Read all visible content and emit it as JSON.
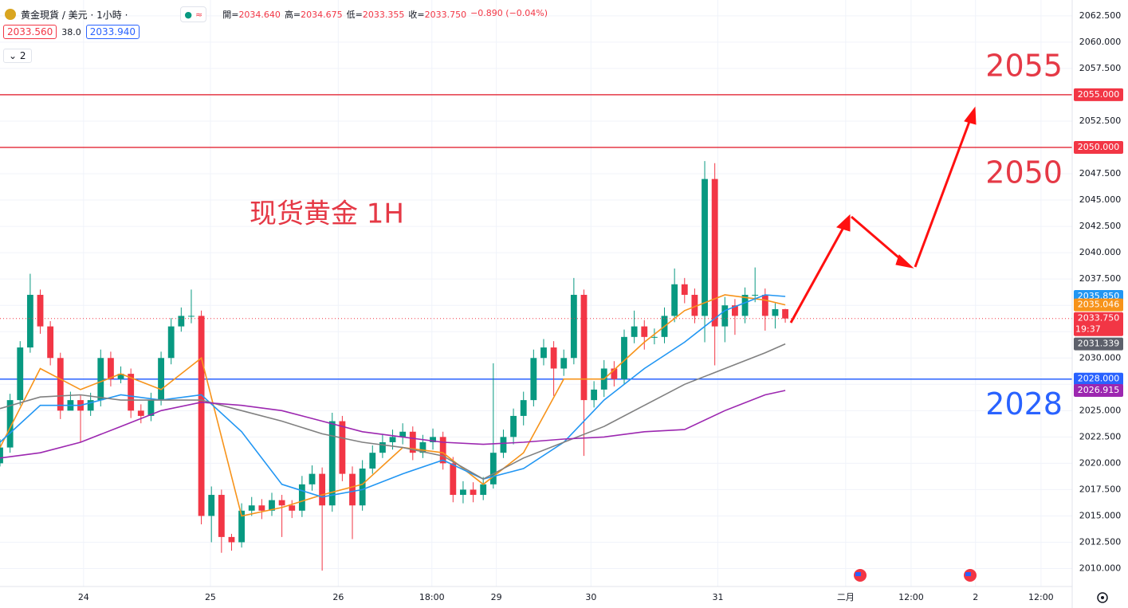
{
  "chart_data": {
    "type": "candlestick",
    "title": "黄金現貨 / 美元 · 1小時 ·",
    "ohlc": [
      {
        "name": "開=",
        "value": "2034.640"
      },
      {
        "name": "高=",
        "value": "2034.675"
      },
      {
        "name": "低=",
        "value": "2033.355"
      },
      {
        "name": "收=",
        "value": "2033.750"
      }
    ],
    "change": "−0.890 (−0.04%)",
    "sell_price": "2033.560",
    "spread": "38.0",
    "buy_price": "2033.940",
    "indicator_count": "2",
    "annotation": "现货黄金 1H",
    "up_color": "#089981",
    "down_color": "#f23645",
    "grid": true,
    "xlim": [
      0,
      106.5
    ],
    "ylim": [
      2008.3,
      2064.0
    ],
    "xticks": [
      {
        "value": 8.3,
        "label": "24"
      },
      {
        "value": 20.9,
        "label": "25"
      },
      {
        "value": 33.6,
        "label": "26"
      },
      {
        "value": 42.9,
        "label": "18:00"
      },
      {
        "value": 49.3,
        "label": "29"
      },
      {
        "value": 58.7,
        "label": "30"
      },
      {
        "value": 71.3,
        "label": "31"
      },
      {
        "value": 84,
        "label": "二月"
      },
      {
        "value": 90.5,
        "label": "12:00"
      },
      {
        "value": 96.9,
        "label": "2"
      },
      {
        "value": 103.4,
        "label": "12:00"
      }
    ],
    "yticks": [
      {
        "value": 2010,
        "label": "2010.000"
      },
      {
        "value": 2012.5,
        "label": "2012.500"
      },
      {
        "value": 2015,
        "label": "2015.000"
      },
      {
        "value": 2017.5,
        "label": "2017.500"
      },
      {
        "value": 2020,
        "label": "2020.000"
      },
      {
        "value": 2022.5,
        "label": "2022.500"
      },
      {
        "value": 2025,
        "label": "2025.000"
      },
      {
        "value": 2027.5,
        "label": "2027.500"
      },
      {
        "value": 2030,
        "label": "2030.000"
      },
      {
        "value": 2032.5,
        "label": "2032.500"
      },
      {
        "value": 2035,
        "label": "2035.000"
      },
      {
        "value": 2037.5,
        "label": "2037.500"
      },
      {
        "value": 2040,
        "label": "2040.000"
      },
      {
        "value": 2042.5,
        "label": "2042.500"
      },
      {
        "value": 2045,
        "label": "2045.000"
      },
      {
        "value": 2047.5,
        "label": "2047.500"
      },
      {
        "value": 2050,
        "label": "2050.000"
      },
      {
        "value": 2052.5,
        "label": "2052.500"
      },
      {
        "value": 2055,
        "label": "2055.000"
      },
      {
        "value": 2057.5,
        "label": "2057.500"
      },
      {
        "value": 2060,
        "label": "2060.000"
      },
      {
        "value": 2062.5,
        "label": "2062.500"
      }
    ],
    "open": [
      2020,
      2021.5,
      2026,
      2031,
      2036,
      2033,
      2030,
      2025,
      2026,
      2025,
      2026,
      2030,
      2028,
      2028.5,
      2025,
      2024.5,
      2026,
      2030,
      2033,
      2034,
      2034,
      2015,
      2017,
      2013,
      2012.5,
      2015.5,
      2016,
      2015.5,
      2016.5,
      2016,
      2015.5,
      2018,
      2019,
      2016,
      2024,
      2019,
      2016,
      2019.5,
      2021,
      2022,
      2022.5,
      2023,
      2021,
      2022,
      2022.5,
      2020,
      2017,
      2017.5,
      2017,
      2018,
      2021,
      2022.5,
      2024.5,
      2026,
      2030,
      2031,
      2029,
      2030,
      2036,
      2026,
      2027,
      2029,
      2028,
      2032,
      2033,
      2032,
      2032,
      2034,
      2037,
      2036,
      2034,
      2047,
      2033,
      2035,
      2034,
      2036,
      2036,
      2034,
      2034.64
    ],
    "high": [
      2022.3,
      2026.6,
      2031.6,
      2038,
      2036.5,
      2033.5,
      2030.5,
      2026.8,
      2026.5,
      2026.7,
      2030.8,
      2030.6,
      2029.2,
      2029,
      2025.6,
      2026.7,
      2030.6,
      2033.8,
      2034.8,
      2036.5,
      2034.5,
      2017.8,
      2017.5,
      2013.3,
      2016.2,
      2016.8,
      2016.6,
      2017.2,
      2017,
      2016.5,
      2018.8,
      2019.8,
      2019.6,
      2024.8,
      2024.5,
      2019.7,
      2020.3,
      2021.7,
      2022.8,
      2023.2,
      2023.8,
      2023.5,
      2022.7,
      2023.3,
      2023,
      2020.6,
      2018.3,
      2018.2,
      2018.7,
      2029.5,
      2023.2,
      2025.2,
      2026.8,
      2030.8,
      2031.8,
      2031.6,
      2030.8,
      2037.6,
      2036.5,
      2027.8,
      2029.8,
      2029.7,
      2032.7,
      2034.5,
      2033.6,
      2032.8,
      2034.8,
      2038.5,
      2037.6,
      2036.6,
      2048.7,
      2048.5,
      2035.8,
      2035.6,
      2036.7,
      2038.6,
      2036.6,
      2035.2,
      2034.675
    ],
    "low": [
      2019.7,
      2021,
      2025.5,
      2030.5,
      2032.3,
      2029.3,
      2024.2,
      2025.2,
      2022,
      2024.5,
      2025.4,
      2027.3,
      2027.6,
      2024.3,
      2023.8,
      2024,
      2025.5,
      2029.4,
      2032.5,
      2033.3,
      2014.2,
      2012.5,
      2011.5,
      2011.7,
      2012,
      2015,
      2014.7,
      2015,
      2013,
      2014.8,
      2014.9,
      2017.4,
      2009.8,
      2015.4,
      2018.3,
      2012.8,
      2015.5,
      2019,
      2020.5,
      2021.3,
      2021.8,
      2020.3,
      2020.5,
      2021.3,
      2019.4,
      2016.3,
      2016.2,
      2016.3,
      2016.5,
      2017.6,
      2020.5,
      2021.8,
      2023.6,
      2025.4,
      2029.3,
      2026.4,
      2028.3,
      2029.4,
      2020.7,
      2025.3,
      2026.3,
      2027.3,
      2027.5,
      2031.4,
      2030.8,
      2031.3,
      2031.4,
      2033.4,
      2035.2,
      2033.3,
      2031.5,
      2029.3,
      2031.5,
      2032.2,
      2033.3,
      2035.3,
      2032.6,
      2032.8,
      2033.355
    ],
    "close": [
      2021.5,
      2026,
      2031,
      2036,
      2033,
      2030,
      2025,
      2026,
      2025,
      2026,
      2030,
      2028,
      2028.5,
      2025,
      2024.5,
      2026,
      2030,
      2033,
      2034,
      2034,
      2015,
      2017,
      2013,
      2012.5,
      2015.5,
      2016,
      2015.5,
      2016.5,
      2016,
      2015.5,
      2018,
      2019,
      2016,
      2024,
      2019,
      2016,
      2019.5,
      2021,
      2022,
      2022.5,
      2023,
      2021,
      2022,
      2022.5,
      2020,
      2017,
      2017.5,
      2017,
      2018,
      2021,
      2022.5,
      2024.5,
      2026,
      2030,
      2031,
      2029,
      2030,
      2036,
      2026,
      2027,
      2029,
      2028,
      2032,
      2033,
      2032,
      2032,
      2034,
      2037,
      2036,
      2034,
      2047,
      2033,
      2035,
      2034,
      2036,
      2036,
      2034,
      2034.64,
      2033.75
    ],
    "series": [
      {
        "color": "#f7931a",
        "x": [
          0,
          4,
          8,
          12,
          16,
          20,
          24,
          28,
          32,
          36,
          40,
          44,
          48,
          52,
          56,
          60,
          64,
          68,
          72,
          76,
          78
        ],
        "values": [
          2021.5,
          2029,
          2027,
          2028.5,
          2027,
          2030,
          2015,
          2015.8,
          2017,
          2018,
          2021.5,
          2021,
          2018,
          2021,
          2028,
          2028,
          2031.5,
          2034.5,
          2036,
          2035.5,
          2035.046
        ]
      },
      {
        "color": "#2196f3",
        "x": [
          0,
          4,
          8,
          12,
          16,
          20,
          24,
          28,
          32,
          36,
          40,
          44,
          48,
          52,
          56,
          60,
          64,
          68,
          72,
          76,
          78
        ],
        "values": [
          2022,
          2025.5,
          2025.5,
          2026.5,
          2026,
          2026.5,
          2023,
          2018,
          2016.8,
          2017.5,
          2019,
          2020.3,
          2018.5,
          2019.5,
          2022,
          2026,
          2029,
          2031.5,
          2034.5,
          2036,
          2035.85
        ]
      },
      {
        "color": "#808080",
        "x": [
          0,
          4,
          8,
          12,
          16,
          20,
          24,
          28,
          32,
          36,
          40,
          44,
          48,
          52,
          56,
          60,
          64,
          68,
          72,
          76,
          78
        ],
        "values": [
          2025.2,
          2026.3,
          2026.5,
          2026,
          2026,
          2026,
          2025,
          2024,
          2022.8,
          2022,
          2021.5,
          2020.7,
          2018.5,
          2020.5,
          2022,
          2023.5,
          2025.5,
          2027.5,
          2029,
          2030.5,
          2031.339
        ]
      },
      {
        "color": "#9c27b0",
        "x": [
          0,
          4,
          8,
          12,
          16,
          20,
          24,
          28,
          32,
          36,
          40,
          44,
          48,
          52,
          56,
          60,
          64,
          68,
          72,
          76,
          78
        ],
        "values": [
          2020.5,
          2021,
          2022,
          2023.5,
          2025,
          2025.8,
          2025.5,
          2025,
          2024,
          2023,
          2022.5,
          2022,
          2021.8,
          2022,
          2022.3,
          2022.5,
          2023,
          2023.2,
          2025,
          2026.5,
          2026.915
        ]
      }
    ],
    "levels": [
      {
        "value": 2055,
        "label": "2055",
        "color": "#e53946",
        "side": "above"
      },
      {
        "value": 2050,
        "label": "2050",
        "color": "#e53946",
        "side": "below"
      },
      {
        "value": 2028,
        "label": "2028",
        "color": "#2962ff",
        "side": "below"
      }
    ],
    "price_tags": [
      {
        "value": 2055,
        "label": "2055.000",
        "color": "#f23645"
      },
      {
        "value": 2050,
        "label": "2050.000",
        "color": "#f23645"
      },
      {
        "value": 2035.85,
        "label": "2035.850",
        "color": "#2196f3"
      },
      {
        "value": 2035.046,
        "label": "2035.046",
        "color": "#f7931a"
      },
      {
        "value": 2033.75,
        "label": "2033.750",
        "sublabel": "19:37",
        "color": "#f23645"
      },
      {
        "value": 2031.339,
        "label": "2031.339",
        "color": "#5d606b"
      },
      {
        "value": 2028,
        "label": "2028.000",
        "color": "#2962ff"
      },
      {
        "value": 2026.915,
        "label": "2026.915",
        "color": "#9c27b0"
      }
    ]
  }
}
